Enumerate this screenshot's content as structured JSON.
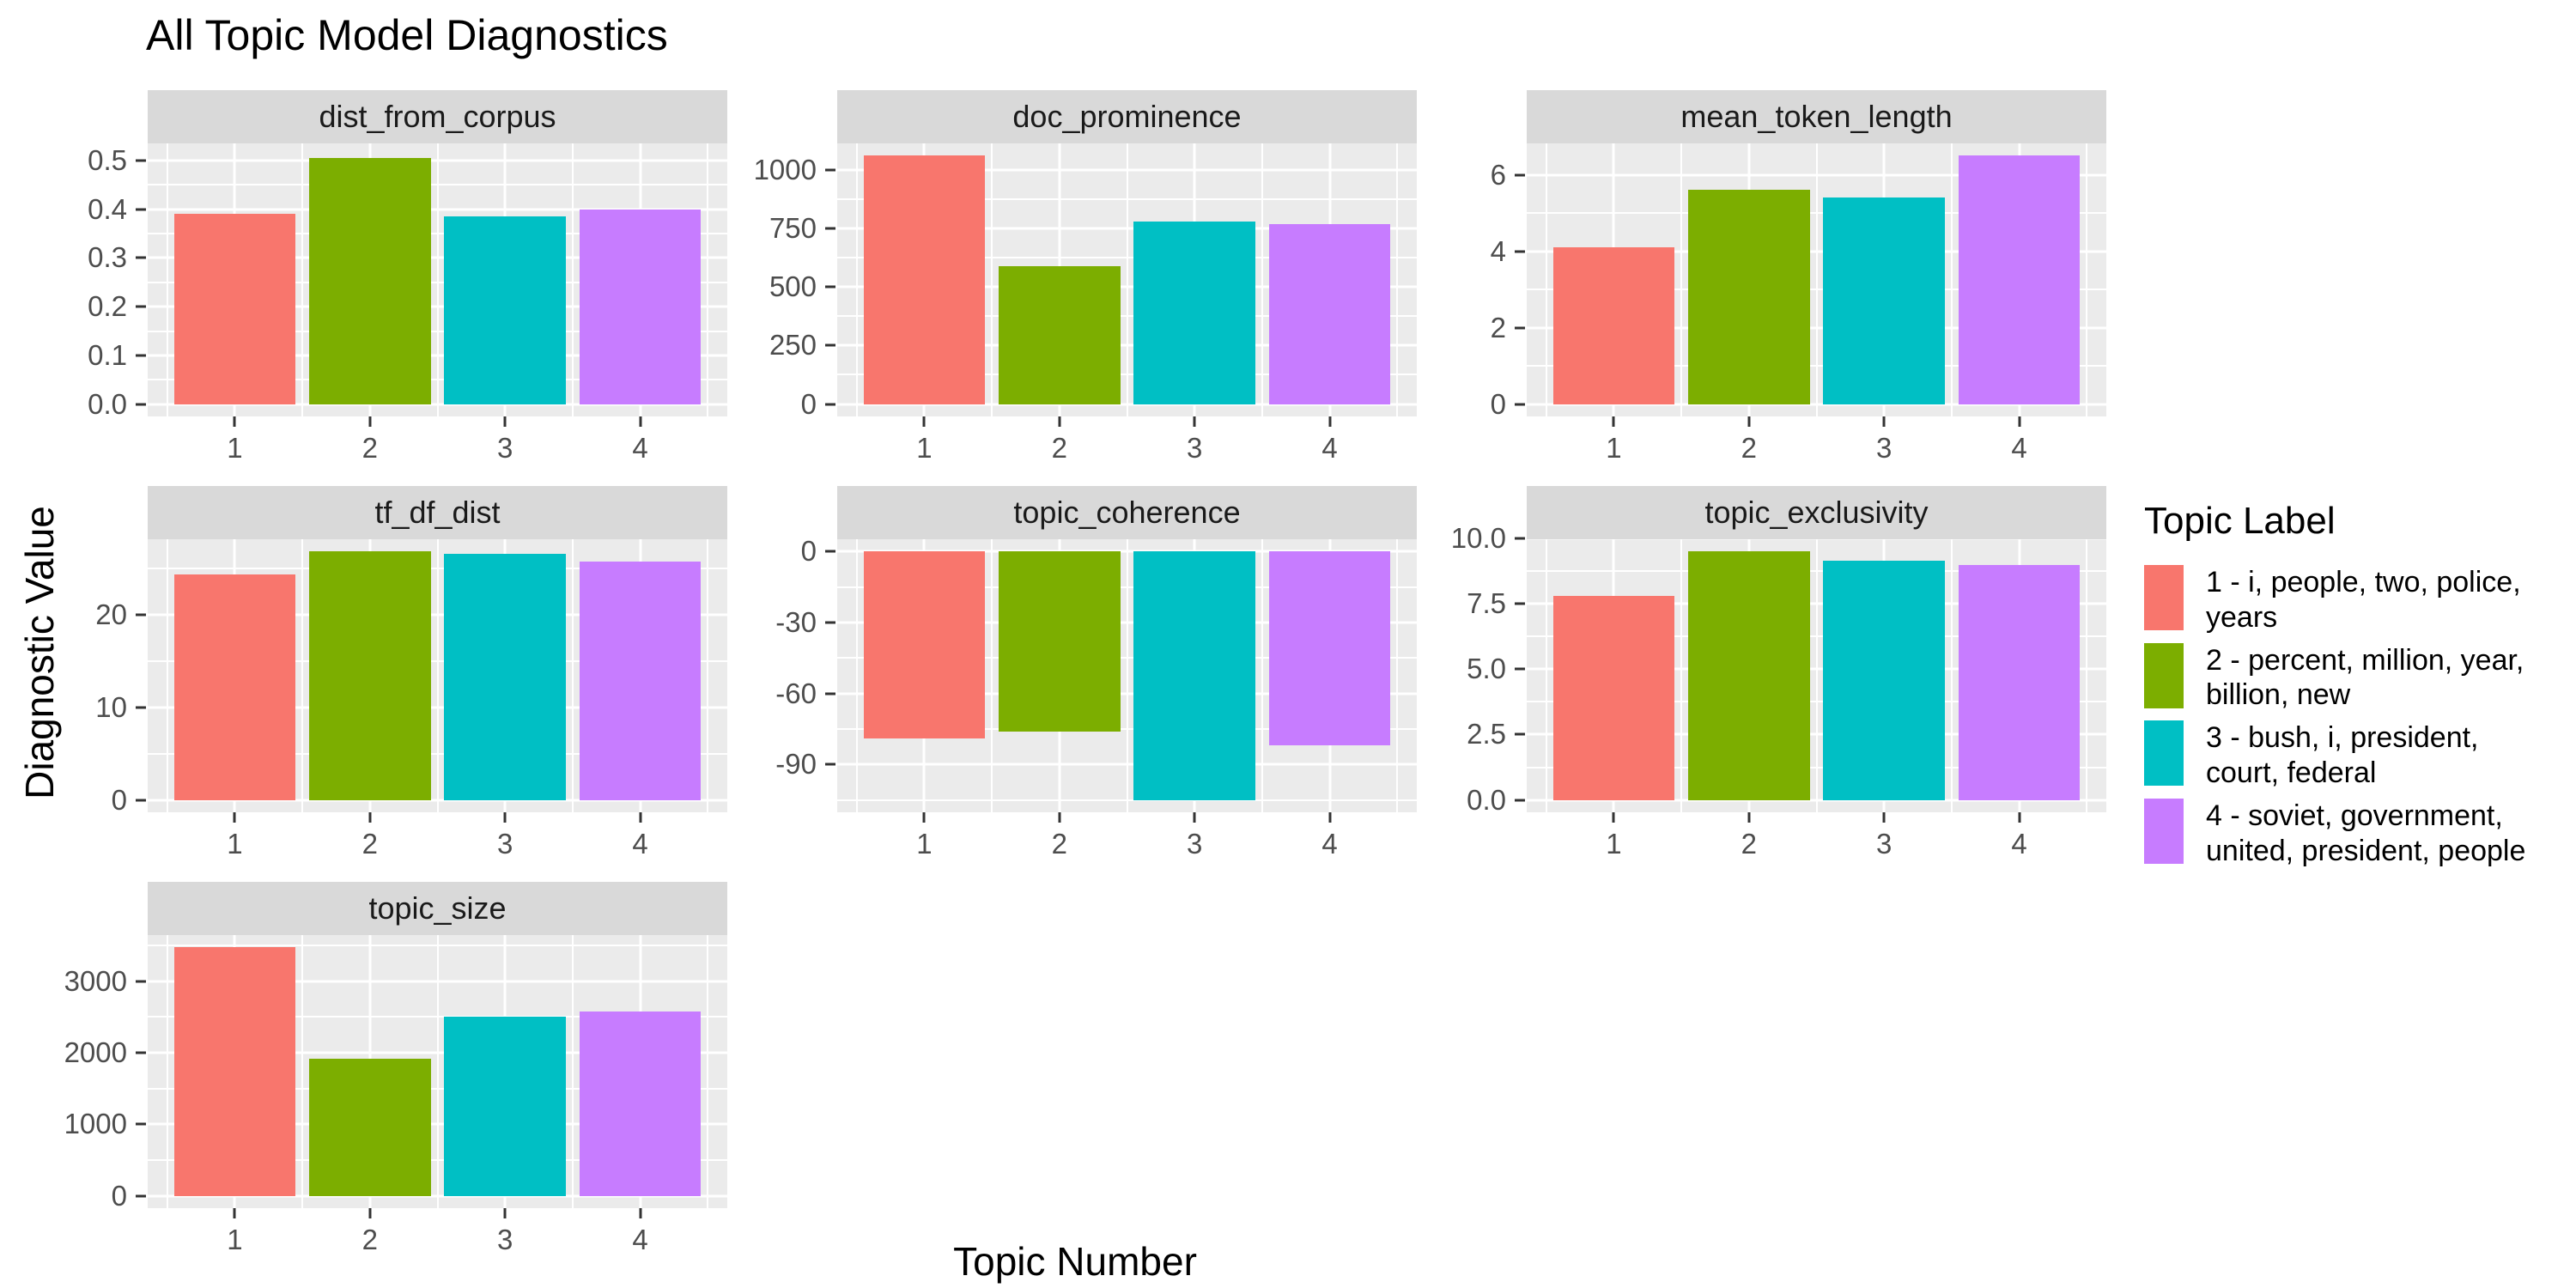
{
  "title": "All Topic Model Diagnostics",
  "axes": {
    "x_label": "Topic Number",
    "y_label": "Diagnostic Value"
  },
  "legend": {
    "title": "Topic Label",
    "entries": [
      {
        "label": "1 - i, people, two, police, years",
        "color": "#F8766D"
      },
      {
        "label": "2 - percent, million, year, billion, new",
        "color": "#7CAE00"
      },
      {
        "label": "3 - bush, i, president, court, federal",
        "color": "#00BFC4"
      },
      {
        "label": "4 - soviet, government, united, president, people",
        "color": "#C77CFF"
      }
    ]
  },
  "chart_data": {
    "type": "bar",
    "title": "All Topic Model Diagnostics",
    "xlabel": "Topic Number",
    "ylabel": "Diagnostic Value",
    "legend_position": "right",
    "grid": true,
    "categories": [
      1,
      2,
      3,
      4
    ],
    "bar_colors": [
      "#F8766D",
      "#7CAE00",
      "#00BFC4",
      "#C77CFF"
    ],
    "bar_width": 0.9,
    "xlim": [
      0.355,
      4.645
    ],
    "x_minor": [
      0.5,
      1.5,
      2.5,
      3.5,
      4.5
    ],
    "facets": [
      {
        "title": "dist_from_corpus",
        "values": [
          0.39,
          0.505,
          0.385,
          0.4
        ],
        "yticks": [
          0,
          0.1,
          0.2,
          0.3,
          0.4,
          0.5
        ],
        "ytick_labels": [
          "0.0",
          "0.1",
          "0.2",
          "0.3",
          "0.4",
          "0.5"
        ],
        "ylim": [
          -0.0255,
          0.5355
        ]
      },
      {
        "title": "doc_prominence",
        "values": [
          1060,
          590,
          780,
          770
        ],
        "yticks": [
          0,
          250,
          500,
          750,
          1000
        ],
        "ytick_labels": [
          "0",
          "250",
          "500",
          "750",
          "1000"
        ],
        "ylim": [
          -53,
          1113
        ]
      },
      {
        "title": "mean_token_length",
        "values": [
          4.1,
          5.6,
          5.4,
          6.5
        ],
        "yticks": [
          0,
          2,
          4,
          6
        ],
        "ytick_labels": [
          "0",
          "2",
          "4",
          "6"
        ],
        "ylim": [
          -0.325,
          6.825
        ]
      },
      {
        "title": "tf_df_dist",
        "values": [
          24.3,
          26.8,
          26.6,
          25.7
        ],
        "yticks": [
          0,
          10,
          20
        ],
        "ytick_labels": [
          "0",
          "10",
          "20"
        ],
        "ylim": [
          -1.34,
          28.14
        ]
      },
      {
        "title": "topic_coherence",
        "values": [
          -79,
          -76,
          -105,
          -82
        ],
        "yticks": [
          -90,
          -60,
          -30,
          0
        ],
        "ytick_labels": [
          "-90",
          "-60",
          "-30",
          "0"
        ],
        "ylim": [
          -110.25,
          5.25
        ]
      },
      {
        "title": "topic_exclusivity",
        "values": [
          7.8,
          9.5,
          9.15,
          9.0
        ],
        "yticks": [
          0,
          2.5,
          5,
          7.5,
          10
        ],
        "ytick_labels": [
          "0.0",
          "2.5",
          "5.0",
          "7.5",
          "10.0"
        ],
        "ylim": [
          -0.475,
          9.975
        ]
      },
      {
        "title": "topic_size",
        "values": [
          3470,
          1920,
          2500,
          2580
        ],
        "yticks": [
          0,
          1000,
          2000,
          3000
        ],
        "ytick_labels": [
          "0",
          "1000",
          "2000",
          "3000"
        ],
        "ylim": [
          -173.5,
          3643.5
        ]
      }
    ]
  },
  "theme": {
    "panel_bg": "#EBEBEB",
    "strip_bg": "#D9D9D9",
    "gridline": "#FFFFFF",
    "tick_text": "#4D4D4D",
    "tick_mark": "#333333",
    "text": "#000000"
  }
}
